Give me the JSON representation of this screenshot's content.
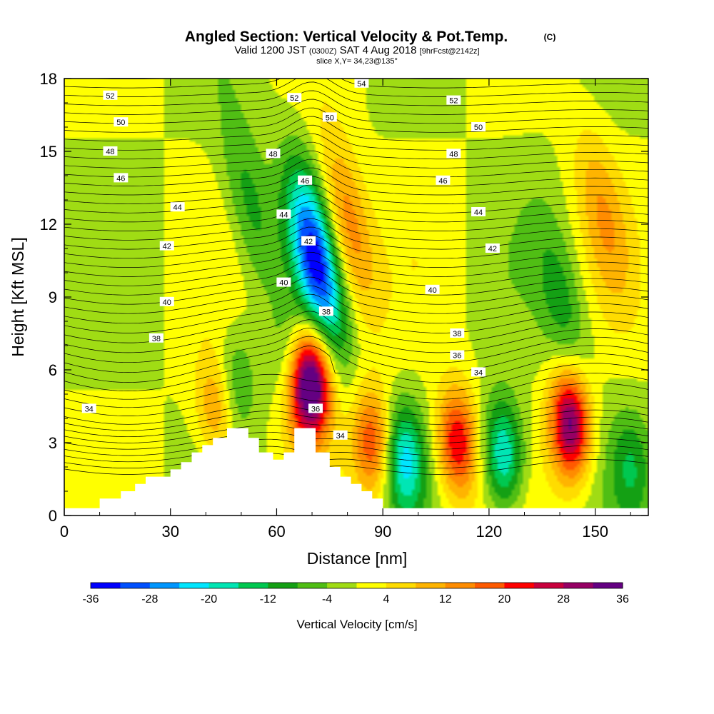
{
  "title": {
    "main": "Angled Section: Vertical Velocity & Pot.Temp.",
    "main_unit": "(C)",
    "valid_prefix": "Valid 1200 JST",
    "valid_utc": "(0300Z)",
    "valid_date": "SAT 4 Aug 2018",
    "forecast": "[9hrFcst@2142z]",
    "slice": "slice X,Y= 34,23@135°"
  },
  "chart_data": {
    "type": "heatmap",
    "xlabel": "Distance [nm]",
    "ylabel": "Height [Kft MSL]",
    "xlim": [
      0,
      165
    ],
    "ylim": [
      0,
      18
    ],
    "x_ticks": [
      "0",
      "30",
      "60",
      "90",
      "120",
      "150"
    ],
    "y_ticks": [
      "0",
      "3",
      "6",
      "9",
      "12",
      "15",
      "18"
    ],
    "colorbar": {
      "label": "Vertical Velocity [cm/s]",
      "tick_labels": [
        "-36",
        "-28",
        "-20",
        "-12",
        "-4",
        "4",
        "12",
        "20",
        "28",
        "36"
      ],
      "colors": [
        "#0000ff",
        "#0050ff",
        "#0096ff",
        "#00e6ff",
        "#00e6b4",
        "#00c850",
        "#14a014",
        "#50be14",
        "#a0dc14",
        "#ffff00",
        "#ffdc00",
        "#ffb400",
        "#ff8c00",
        "#ff5a00",
        "#ff0000",
        "#c8003c",
        "#960064",
        "#640082"
      ]
    },
    "terrain": [
      [
        0,
        0.3
      ],
      [
        10,
        0.3
      ],
      [
        10,
        0.7
      ],
      [
        16,
        0.7
      ],
      [
        16,
        1.0
      ],
      [
        20,
        1.0
      ],
      [
        20,
        1.3
      ],
      [
        23,
        1.3
      ],
      [
        23,
        1.6
      ],
      [
        30,
        1.6
      ],
      [
        30,
        1.9
      ],
      [
        33,
        1.9
      ],
      [
        33,
        2.2
      ],
      [
        36,
        2.2
      ],
      [
        36,
        2.6
      ],
      [
        39,
        2.6
      ],
      [
        39,
        2.9
      ],
      [
        42,
        2.9
      ],
      [
        42,
        3.2
      ],
      [
        46,
        3.2
      ],
      [
        46,
        3.6
      ],
      [
        52,
        3.6
      ],
      [
        52,
        3.2
      ],
      [
        55,
        3.2
      ],
      [
        55,
        2.6
      ],
      [
        59,
        2.6
      ],
      [
        59,
        2.3
      ],
      [
        62,
        2.3
      ],
      [
        62,
        2.6
      ],
      [
        65,
        2.6
      ],
      [
        65,
        3.6
      ],
      [
        71,
        3.6
      ],
      [
        71,
        2.6
      ],
      [
        75,
        2.6
      ],
      [
        75,
        2.0
      ],
      [
        78,
        2.0
      ],
      [
        78,
        1.6
      ],
      [
        81,
        1.6
      ],
      [
        81,
        1.3
      ],
      [
        84,
        1.3
      ],
      [
        84,
        1.0
      ],
      [
        87,
        1.0
      ],
      [
        87,
        0.7
      ],
      [
        90,
        0.7
      ],
      [
        90,
        0.3
      ],
      [
        165,
        0.3
      ]
    ],
    "vertical_velocity_features": [
      {
        "x": 71,
        "z": 10.5,
        "value": -32
      },
      {
        "x": 70,
        "z": 5.5,
        "value": 36
      },
      {
        "x": 143,
        "z": 3.8,
        "value": 34
      },
      {
        "x": 111,
        "z": 3.0,
        "value": 24
      },
      {
        "x": 96,
        "z": 2.3,
        "value": -20
      },
      {
        "x": 124,
        "z": 2.5,
        "value": -22
      },
      {
        "x": 52,
        "z": 13.0,
        "value": -10
      },
      {
        "x": 80,
        "z": 12.0,
        "value": 16
      },
      {
        "x": 87,
        "z": 3.0,
        "value": 20
      },
      {
        "x": 43,
        "z": 4.5,
        "value": 14
      },
      {
        "x": 141,
        "z": 8.5,
        "value": -10
      },
      {
        "x": 152,
        "z": 12.5,
        "value": 10
      },
      {
        "x": 160,
        "z": 2.0,
        "value": -10
      },
      {
        "x": 66,
        "z": 5.0,
        "value": 14
      },
      {
        "x": 64,
        "z": 6.0,
        "value": -10
      },
      {
        "x": 48,
        "z": 5.5,
        "value": -10
      }
    ],
    "theta_contour_labels": [
      {
        "text": "52",
        "x": 13,
        "z": 17.3
      },
      {
        "text": "50",
        "x": 16,
        "z": 16.2
      },
      {
        "text": "48",
        "x": 13,
        "z": 15.0
      },
      {
        "text": "46",
        "x": 16,
        "z": 13.9
      },
      {
        "text": "44",
        "x": 32,
        "z": 12.7
      },
      {
        "text": "42",
        "x": 29,
        "z": 11.1
      },
      {
        "text": "40",
        "x": 29,
        "z": 8.8
      },
      {
        "text": "38",
        "x": 26,
        "z": 7.3
      },
      {
        "text": "34",
        "x": 7,
        "z": 4.4
      },
      {
        "text": "52",
        "x": 65,
        "z": 17.2
      },
      {
        "text": "48",
        "x": 59,
        "z": 14.9
      },
      {
        "text": "46",
        "x": 68,
        "z": 13.8
      },
      {
        "text": "44",
        "x": 62,
        "z": 12.4
      },
      {
        "text": "42",
        "x": 69,
        "z": 11.3
      },
      {
        "text": "40",
        "x": 62,
        "z": 9.6
      },
      {
        "text": "38",
        "x": 74,
        "z": 8.4
      },
      {
        "text": "36",
        "x": 71,
        "z": 4.4
      },
      {
        "text": "34",
        "x": 78,
        "z": 3.3
      },
      {
        "text": "54",
        "x": 84,
        "z": 17.8
      },
      {
        "text": "50",
        "x": 75,
        "z": 16.4
      },
      {
        "text": "52",
        "x": 110,
        "z": 17.1
      },
      {
        "text": "50",
        "x": 117,
        "z": 16.0
      },
      {
        "text": "48",
        "x": 110,
        "z": 14.9
      },
      {
        "text": "46",
        "x": 107,
        "z": 13.8
      },
      {
        "text": "44",
        "x": 117,
        "z": 12.5
      },
      {
        "text": "42",
        "x": 121,
        "z": 11.0
      },
      {
        "text": "40",
        "x": 104,
        "z": 9.3
      },
      {
        "text": "38",
        "x": 111,
        "z": 7.5
      },
      {
        "text": "36",
        "x": 111,
        "z": 6.6
      },
      {
        "text": "34",
        "x": 117,
        "z": 5.9
      }
    ]
  },
  "colors": {
    "background": "#ffffff",
    "terrain": "#ffffff",
    "contour": "#000000"
  }
}
